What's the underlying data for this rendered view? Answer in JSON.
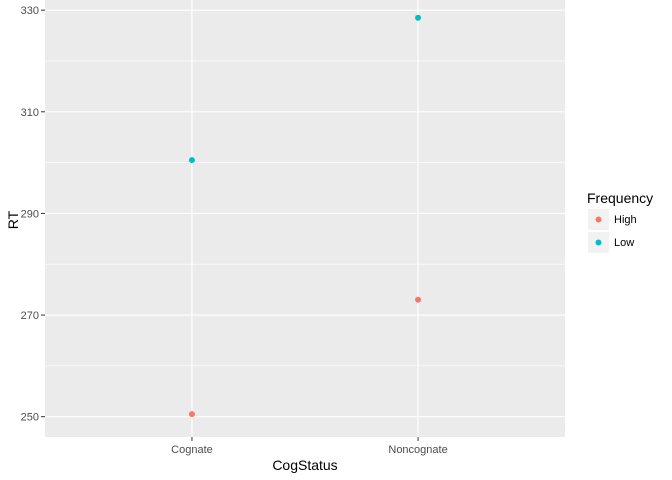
{
  "chart_data": {
    "type": "scatter",
    "xlabel": "CogStatus",
    "ylabel": "RT",
    "categories": [
      "Cognate",
      "Noncognate"
    ],
    "ylim": [
      246,
      332
    ],
    "yticks": [
      250,
      270,
      290,
      310,
      330
    ],
    "grid": true,
    "legend": {
      "title": "Frequency",
      "placement": "right",
      "entries": [
        "High",
        "Low"
      ]
    },
    "series": [
      {
        "name": "High",
        "color": "#F8766D",
        "values": [
          250.5,
          273
        ]
      },
      {
        "name": "Low",
        "color": "#00BFC4",
        "values": [
          300.5,
          328.5
        ]
      }
    ],
    "panel_background": "#EBEBEB",
    "grid_color": "#FFFFFF"
  }
}
